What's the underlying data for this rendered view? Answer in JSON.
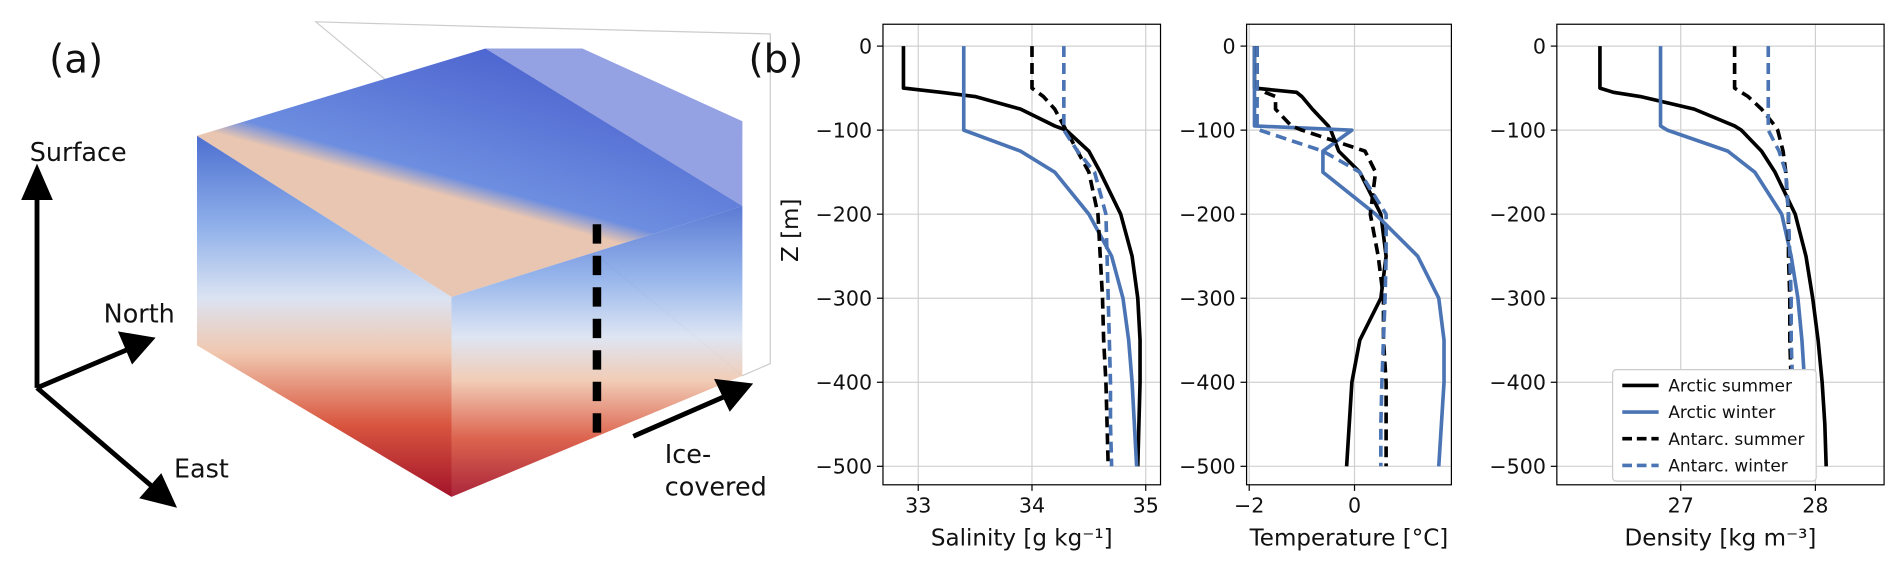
{
  "panel_a": {
    "panel_label": "(a)",
    "surface_label": "Surface",
    "north_label": "North",
    "east_label": "East",
    "ice_label": [
      "Ice-",
      "covered"
    ]
  },
  "chart_data": [
    {
      "type": "line",
      "panel_label": "(b)",
      "xlabel": "Salinity [g kg⁻¹]",
      "ylabel": "Z [m]",
      "xlim": [
        32.69,
        35.13
      ],
      "xticks": [
        33,
        34,
        35
      ],
      "ylim": [
        -522,
        26
      ],
      "yticks": [
        0,
        {
          "value": -100,
          "label": "−100"
        },
        {
          "value": -200,
          "label": "−200"
        },
        {
          "value": -300,
          "label": "−300"
        },
        {
          "value": -400,
          "label": "−400"
        },
        {
          "value": -500,
          "label": "−500"
        }
      ],
      "grid": true,
      "y": [
        0,
        -50,
        -55,
        -60,
        -75,
        -95,
        -100,
        -125,
        -150,
        -200,
        -250,
        -300,
        -350,
        -400,
        -450,
        -500
      ],
      "series": [
        {
          "color": "#000000",
          "dashed": false,
          "values": [
            32.87,
            32.87,
            33.2,
            33.5,
            33.9,
            34.2,
            34.3,
            34.5,
            34.6,
            34.78,
            34.88,
            34.93,
            34.95,
            34.95,
            34.94,
            34.93
          ]
        },
        {
          "color": "#4a74b4",
          "dashed": false,
          "values": [
            33.4,
            33.4,
            33.4,
            33.4,
            33.4,
            33.4,
            33.4,
            33.9,
            34.2,
            34.5,
            34.7,
            34.8,
            34.85,
            34.88,
            34.9,
            34.92
          ]
        },
        {
          "color": "#000000",
          "dashed": true,
          "values": [
            34.0,
            34.0,
            34.05,
            34.1,
            34.2,
            34.28,
            34.3,
            34.4,
            34.5,
            34.58,
            34.6,
            34.62,
            34.63,
            34.65,
            34.66,
            34.67
          ]
        },
        {
          "color": "#4a74b4",
          "dashed": true,
          "values": [
            34.28,
            34.28,
            34.28,
            34.28,
            34.28,
            34.28,
            34.28,
            34.4,
            34.55,
            34.65,
            34.66,
            34.67,
            34.68,
            34.69,
            34.69,
            34.7
          ]
        }
      ]
    },
    {
      "type": "line",
      "xlabel": "Temperature [°C]",
      "xlim": [
        -2.05,
        1.84
      ],
      "xticks": [
        {
          "value": -2,
          "label": "−2"
        },
        0
      ],
      "ylim": [
        -522,
        26
      ],
      "yticks": [
        0,
        {
          "value": -100,
          "label": "−100"
        },
        {
          "value": -200,
          "label": "−200"
        },
        {
          "value": -300,
          "label": "−300"
        },
        {
          "value": -400,
          "label": "−400"
        },
        {
          "value": -500,
          "label": "−500"
        }
      ],
      "grid": true,
      "y": [
        0,
        -50,
        -55,
        -60,
        -75,
        -95,
        -100,
        -125,
        -150,
        -200,
        -250,
        -300,
        -350,
        -400,
        -450,
        -500
      ],
      "series": [
        {
          "color": "#000000",
          "dashed": false,
          "values": [
            -1.9,
            -1.9,
            -1.1,
            -1.0,
            -0.8,
            -0.5,
            -0.45,
            -0.3,
            0.1,
            0.5,
            0.6,
            0.5,
            0.1,
            -0.05,
            -0.1,
            -0.15
          ]
        },
        {
          "color": "#4a74b4",
          "dashed": false,
          "values": [
            -1.9,
            -1.9,
            -1.9,
            -1.9,
            -1.9,
            -1.9,
            -0.05,
            -0.6,
            -0.6,
            0.4,
            1.2,
            1.6,
            1.7,
            1.7,
            1.65,
            1.6
          ]
        },
        {
          "color": "#000000",
          "dashed": true,
          "values": [
            -1.85,
            -1.85,
            -1.7,
            -1.5,
            -1.5,
            -1.2,
            -1.0,
            0.2,
            0.4,
            0.3,
            0.45,
            0.55,
            0.55,
            0.6,
            0.6,
            0.6
          ]
        },
        {
          "color": "#4a74b4",
          "dashed": true,
          "values": [
            -1.85,
            -1.85,
            -1.85,
            -1.85,
            -1.85,
            -1.85,
            -1.8,
            -0.6,
            0.1,
            0.6,
            0.6,
            0.58,
            0.55,
            0.52,
            0.5,
            0.5
          ]
        }
      ]
    },
    {
      "type": "line",
      "xlabel": "Density [kg m⁻³]",
      "xlim": [
        26.08,
        28.51
      ],
      "xticks": [
        27,
        28
      ],
      "ylim": [
        -522,
        26
      ],
      "yticks": [
        0,
        {
          "value": -100,
          "label": "−100"
        },
        {
          "value": -200,
          "label": "−200"
        },
        {
          "value": -300,
          "label": "−300"
        },
        {
          "value": -400,
          "label": "−400"
        },
        {
          "value": -500,
          "label": "−500"
        }
      ],
      "grid": true,
      "legend": "lower right",
      "y": [
        0,
        -50,
        -55,
        -60,
        -75,
        -95,
        -100,
        -125,
        -150,
        -200,
        -250,
        -300,
        -350,
        -400,
        -450,
        -500
      ],
      "series": [
        {
          "name": "Arctic summer",
          "color": "#000000",
          "dashed": false,
          "values": [
            26.4,
            26.4,
            26.5,
            26.7,
            27.1,
            27.4,
            27.45,
            27.6,
            27.7,
            27.85,
            27.93,
            27.98,
            28.02,
            28.05,
            28.07,
            28.08
          ]
        },
        {
          "name": "Arctic winter",
          "color": "#4a74b4",
          "dashed": false,
          "values": [
            26.85,
            26.85,
            26.85,
            26.85,
            26.85,
            26.85,
            26.9,
            27.35,
            27.55,
            27.75,
            27.82,
            27.87,
            27.9,
            27.92,
            27.93,
            27.95
          ]
        },
        {
          "name": "Antarc. summer",
          "color": "#000000",
          "dashed": true,
          "values": [
            27.4,
            27.4,
            27.45,
            27.5,
            27.6,
            27.7,
            27.72,
            27.76,
            27.78,
            27.8,
            27.8,
            27.81,
            27.81,
            27.82,
            27.82,
            27.83
          ]
        },
        {
          "name": "Antarc. winter",
          "color": "#4a74b4",
          "dashed": true,
          "values": [
            27.65,
            27.65,
            27.65,
            27.65,
            27.65,
            27.65,
            27.65,
            27.73,
            27.78,
            27.8,
            27.81,
            27.82,
            27.82,
            27.83,
            27.83,
            27.84
          ]
        }
      ]
    }
  ]
}
